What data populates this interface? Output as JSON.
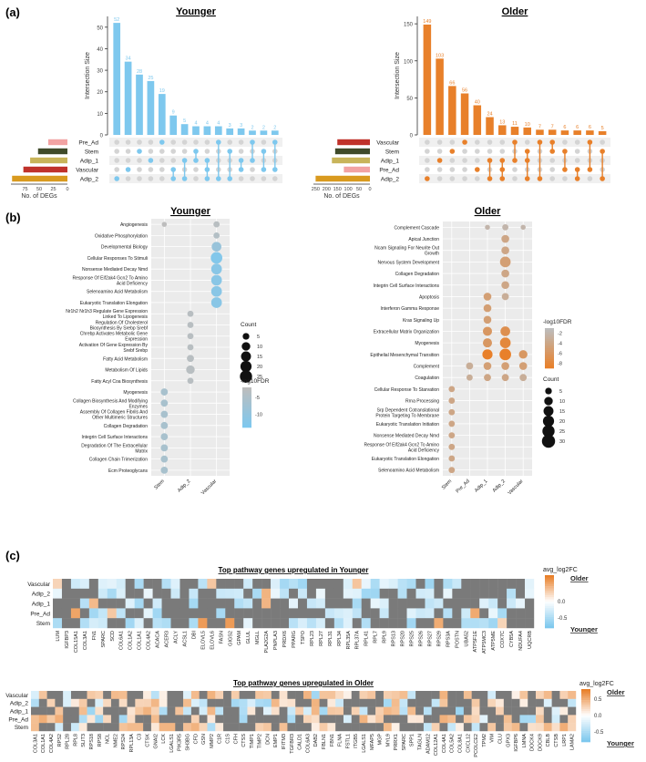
{
  "panel_labels": {
    "a": "(a)",
    "b": "(b)",
    "c": "(c)"
  },
  "colors": {
    "young_bar": "#7EC8EE",
    "old_bar": "#E8802A",
    "set_pre_ad": "#F2A3A3",
    "set_stem": "#3F4A2A",
    "set_adip_1": "#C8B45A",
    "set_vascular": "#C0322B",
    "set_adip_2": "#D99A1F",
    "panel_bg": "#EBEBEB",
    "na_gray": "#7A7A7A"
  },
  "chart_data": [
    {
      "id": "upset-younger",
      "type": "bar",
      "title": "Younger",
      "ylabel": "Intersection Size",
      "ylim": [
        0,
        55
      ],
      "yticks": [
        0,
        10,
        20,
        30,
        40,
        50
      ],
      "values": [
        52,
        34,
        28,
        25,
        19,
        9,
        5,
        4,
        4,
        4,
        3,
        3,
        2,
        2,
        2
      ],
      "set_size_axis_label": "No. of DEGs",
      "set_size_ticks": [
        75,
        50,
        25,
        0
      ],
      "set_size_max": 100,
      "sets": [
        {
          "name": "Pre_Ad",
          "size": 34,
          "color_key": "set_pre_ad"
        },
        {
          "name": "Stem",
          "size": 52,
          "color_key": "set_stem"
        },
        {
          "name": "Adip_1",
          "size": 66,
          "color_key": "set_adip_1"
        },
        {
          "name": "Vascular",
          "size": 78,
          "color_key": "set_vascular"
        },
        {
          "name": "Adip_2",
          "size": 98,
          "color_key": "set_adip_2"
        }
      ],
      "membership": [
        [
          4
        ],
        [
          3
        ],
        [
          1
        ],
        [
          2
        ],
        [
          0
        ],
        [
          3,
          4
        ],
        [
          2,
          4
        ],
        [
          1,
          2
        ],
        [
          2,
          3,
          4
        ],
        [
          0,
          4
        ],
        [
          1,
          4
        ],
        [
          2,
          3
        ],
        [
          0,
          2
        ],
        [
          1,
          3
        ],
        [
          0,
          3
        ]
      ]
    },
    {
      "id": "upset-older",
      "type": "bar",
      "title": "Older",
      "ylabel": "Intersection Size",
      "ylim": [
        0,
        160
      ],
      "yticks": [
        0,
        50,
        100,
        150
      ],
      "values": [
        149,
        103,
        66,
        56,
        40,
        24,
        13,
        11,
        10,
        7,
        7,
        6,
        6,
        6,
        5
      ],
      "set_size_axis_label": "No. of DEGs",
      "set_size_ticks": [
        250,
        200,
        150,
        100,
        50,
        0
      ],
      "set_size_max": 260,
      "sets": [
        {
          "name": "Vascular",
          "size": 150,
          "color_key": "set_vascular"
        },
        {
          "name": "Stem",
          "size": 160,
          "color_key": "set_stem"
        },
        {
          "name": "Adip_1",
          "size": 175,
          "color_key": "set_adip_1"
        },
        {
          "name": "Pre_Ad",
          "size": 120,
          "color_key": "set_pre_ad"
        },
        {
          "name": "Adip_2",
          "size": 250,
          "color_key": "set_adip_2"
        }
      ],
      "membership": [
        [
          4
        ],
        [
          2
        ],
        [
          1
        ],
        [
          0
        ],
        [
          3
        ],
        [
          2,
          4
        ],
        [
          2,
          3,
          4
        ],
        [
          0,
          2
        ],
        [
          1,
          2,
          4
        ],
        [
          0,
          4
        ],
        [
          0,
          1
        ],
        [
          1,
          3
        ],
        [
          3,
          4
        ],
        [
          0,
          3
        ],
        [
          1,
          4
        ]
      ]
    },
    {
      "id": "dot-younger",
      "type": "scatter",
      "title": "Younger",
      "x": [
        "Stem",
        "Adip_2",
        "Vascular"
      ],
      "pathways": [
        "Angiogenesis",
        "Oxidative Phosphorylation",
        "Developmental Biology",
        "Cellular Responses To Stimuli",
        "Nonsense Mediated Decay Nmd",
        "Response Of Eif2ak4 Gcn2 To Amino Acid Deficiency",
        "Selenoamino Acid Metabolism",
        "Eukaryotic Translation Elongation",
        "Nr1h2 Nr1h3 Regulate Gene Expression Linked To Lipogenesis",
        "Regulation Of Cholesterol Biosynthesis By Srebp Srebf",
        "Chrebp Activates Metabolic Gene Expression",
        "Activation Of Gene Expression By Srebf Srebp",
        "Fatty Acid Metabolism",
        "Metabolism Of Lipids",
        "Fatty Acyl Coa Biosynthesis",
        "Myogenesis",
        "Collagen Biosynthesis And Modifying Enzymes",
        "Assembly Of Collagen Fibrils And Other Multimeric Structures",
        "Collagen Degradation",
        "Integrin Cell Surface Interactions",
        "Degradation Of The Extracellular Matrix",
        "Collagen Chain Trimerization",
        "Ecm Proteoglycans"
      ],
      "points": [
        {
          "x": 0,
          "y": 0,
          "count": 2,
          "log10fdr": -2
        },
        {
          "x": 2,
          "y": 0,
          "count": 4,
          "log10fdr": -3
        },
        {
          "x": 2,
          "y": 1,
          "count": 4,
          "log10fdr": -4
        },
        {
          "x": 2,
          "y": 2,
          "count": 14,
          "log10fdr": -9
        },
        {
          "x": 2,
          "y": 3,
          "count": 22,
          "log10fdr": -13
        },
        {
          "x": 2,
          "y": 4,
          "count": 18,
          "log10fdr": -12
        },
        {
          "x": 2,
          "y": 5,
          "count": 18,
          "log10fdr": -12
        },
        {
          "x": 2,
          "y": 6,
          "count": 18,
          "log10fdr": -12
        },
        {
          "x": 2,
          "y": 7,
          "count": 18,
          "log10fdr": -12
        },
        {
          "x": 1,
          "y": 8,
          "count": 4,
          "log10fdr": -3
        },
        {
          "x": 1,
          "y": 9,
          "count": 4,
          "log10fdr": -3
        },
        {
          "x": 1,
          "y": 10,
          "count": 4,
          "log10fdr": -3
        },
        {
          "x": 1,
          "y": 11,
          "count": 4,
          "log10fdr": -3
        },
        {
          "x": 1,
          "y": 12,
          "count": 6,
          "log10fdr": -3
        },
        {
          "x": 1,
          "y": 13,
          "count": 10,
          "log10fdr": -3
        },
        {
          "x": 1,
          "y": 14,
          "count": 4,
          "log10fdr": -3
        },
        {
          "x": 0,
          "y": 15,
          "count": 6,
          "log10fdr": -6
        },
        {
          "x": 0,
          "y": 16,
          "count": 6,
          "log10fdr": -6
        },
        {
          "x": 0,
          "y": 17,
          "count": 6,
          "log10fdr": -6
        },
        {
          "x": 0,
          "y": 18,
          "count": 6,
          "log10fdr": -6
        },
        {
          "x": 0,
          "y": 19,
          "count": 6,
          "log10fdr": -6
        },
        {
          "x": 0,
          "y": 20,
          "count": 6,
          "log10fdr": -6
        },
        {
          "x": 0,
          "y": 21,
          "count": 6,
          "log10fdr": -6
        },
        {
          "x": 0,
          "y": 22,
          "count": 6,
          "log10fdr": -6
        }
      ],
      "legend": {
        "count_title": "Count",
        "count_sizes": [
          5,
          10,
          15,
          20,
          25
        ],
        "color_title": "-log10FDR",
        "color_ticks": [
          -5,
          -10
        ],
        "color_range": [
          -2,
          -14
        ],
        "color_low": "#BDBDBD",
        "color_high": "#7EC8EE"
      }
    },
    {
      "id": "dot-older",
      "type": "scatter",
      "title": "Older",
      "x": [
        "Stem",
        "Pre_Ad",
        "Adip_1",
        "Adip_2",
        "Vascular"
      ],
      "pathways": [
        "Complement Cascade",
        "Apical Junction",
        "Ncam Signaling For Neurite Out Growth",
        "Nervous System Development",
        "Collagen Degradation",
        "Integrin Cell Surface Interactions",
        "Apoptosis",
        "Interferon Gamma Response",
        "Kras Signaling Up",
        "Extracellular Matrix Organization",
        "Myogenesis",
        "Epithelial Mesenchymal Transition",
        "Complement",
        "Coagulation",
        "Cellular Response To Starvation",
        "Rrna Processing",
        "Srp Dependent Cotranslational Protein Targeting To Membrane",
        "Eukaryotic Translation Initiation",
        "Nonsense Mediated Decay Nmd",
        "Response Of Eif2ak4 Gcn2 To Amino Acid Deficiency",
        "Eukaryotic Translation Elongation",
        "Selenoamino Acid Metabolism"
      ],
      "points": [
        {
          "x": 2,
          "y": 0,
          "count": 2,
          "log10fdr": -2
        },
        {
          "x": 3,
          "y": 0,
          "count": 4,
          "log10fdr": -2
        },
        {
          "x": 4,
          "y": 0,
          "count": 2,
          "log10fdr": -2
        },
        {
          "x": 3,
          "y": 1,
          "count": 8,
          "log10fdr": -4
        },
        {
          "x": 3,
          "y": 2,
          "count": 8,
          "log10fdr": -4
        },
        {
          "x": 3,
          "y": 3,
          "count": 18,
          "log10fdr": -5
        },
        {
          "x": 3,
          "y": 4,
          "count": 8,
          "log10fdr": -4
        },
        {
          "x": 3,
          "y": 5,
          "count": 8,
          "log10fdr": -4
        },
        {
          "x": 2,
          "y": 6,
          "count": 8,
          "log10fdr": -5
        },
        {
          "x": 3,
          "y": 6,
          "count": 6,
          "log10fdr": -3
        },
        {
          "x": 2,
          "y": 7,
          "count": 8,
          "log10fdr": -5
        },
        {
          "x": 2,
          "y": 8,
          "count": 8,
          "log10fdr": -5
        },
        {
          "x": 2,
          "y": 9,
          "count": 12,
          "log10fdr": -6
        },
        {
          "x": 3,
          "y": 9,
          "count": 14,
          "log10fdr": -7
        },
        {
          "x": 2,
          "y": 10,
          "count": 12,
          "log10fdr": -6
        },
        {
          "x": 3,
          "y": 10,
          "count": 18,
          "log10fdr": -8
        },
        {
          "x": 2,
          "y": 11,
          "count": 16,
          "log10fdr": -9
        },
        {
          "x": 3,
          "y": 11,
          "count": 22,
          "log10fdr": -9
        },
        {
          "x": 4,
          "y": 11,
          "count": 10,
          "log10fdr": -6
        },
        {
          "x": 1,
          "y": 12,
          "count": 6,
          "log10fdr": -3
        },
        {
          "x": 2,
          "y": 12,
          "count": 8,
          "log10fdr": -5
        },
        {
          "x": 3,
          "y": 12,
          "count": 8,
          "log10fdr": -5
        },
        {
          "x": 4,
          "y": 12,
          "count": 8,
          "log10fdr": -5
        },
        {
          "x": 1,
          "y": 13,
          "count": 4,
          "log10fdr": -3
        },
        {
          "x": 2,
          "y": 13,
          "count": 6,
          "log10fdr": -4
        },
        {
          "x": 3,
          "y": 13,
          "count": 6,
          "log10fdr": -4
        },
        {
          "x": 4,
          "y": 13,
          "count": 6,
          "log10fdr": -3
        },
        {
          "x": 0,
          "y": 14,
          "count": 4,
          "log10fdr": -4
        },
        {
          "x": 0,
          "y": 15,
          "count": 4,
          "log10fdr": -4
        },
        {
          "x": 0,
          "y": 16,
          "count": 4,
          "log10fdr": -4
        },
        {
          "x": 0,
          "y": 17,
          "count": 4,
          "log10fdr": -4
        },
        {
          "x": 0,
          "y": 18,
          "count": 4,
          "log10fdr": -4
        },
        {
          "x": 0,
          "y": 19,
          "count": 4,
          "log10fdr": -4
        },
        {
          "x": 0,
          "y": 20,
          "count": 4,
          "log10fdr": -4
        },
        {
          "x": 0,
          "y": 21,
          "count": 4,
          "log10fdr": -4
        }
      ],
      "legend": {
        "count_title": "Count",
        "count_sizes": [
          5,
          10,
          15,
          20,
          25,
          30
        ],
        "color_title": "-log10FDR",
        "color_ticks": [
          -2,
          -4,
          -6,
          -8
        ],
        "color_range": [
          -1,
          -9
        ],
        "color_low": "#BDBDBD",
        "color_high": "#E8802A"
      }
    },
    {
      "id": "heat-younger",
      "type": "heatmap",
      "title": "Top pathway genes upregulated in Younger",
      "rows": [
        "Vascular",
        "Adip_2",
        "Adip_1",
        "Pre_Ad",
        "Stem"
      ],
      "columns": [
        "LUM",
        "IGFBP3",
        "COL15A1",
        "COL3A1",
        "FN1",
        "SPARC",
        "SCD",
        "COL6A1",
        "COL1A2",
        "COL1A1",
        "COL4A2",
        "ACACA",
        "ACER3",
        "ACLY",
        "ACSL1",
        "DBI",
        "ELOVL5",
        "ELOVL6",
        "FASN",
        "GIGS2",
        "GPAM",
        "GLUL",
        "MGLL",
        "PLA2G2A",
        "PNPLA3",
        "PRDX6",
        "PPARG",
        "TSPO",
        "RPL23",
        "RPL27",
        "RPL31",
        "RPL34",
        "RPL35A",
        "RPL37A",
        "RPL41",
        "RPL7",
        "RPL9",
        "RPS13",
        "RPS20",
        "RPS25",
        "RPS26",
        "RPS27",
        "RPS29",
        "RPS3A",
        "POSTN",
        "UBA52",
        "ATP5F1E",
        "ATP5MC3",
        "ATP5ME",
        "COX7C",
        "CYB5A",
        "NDUFA4",
        "UQCRB"
      ],
      "legend_title": "avg_log2FC",
      "legend_ticks": [
        0.0,
        -0.5
      ],
      "legend_tick_labels": [
        "0.0",
        "-0.5"
      ],
      "legend_top": "Older",
      "legend_bottom": "Younger",
      "value_range": [
        -0.8,
        0.8
      ]
    },
    {
      "id": "heat-older",
      "type": "heatmap",
      "title": "Top pathway genes upregulated in Older",
      "rows": [
        "Vascular",
        "Adip_2",
        "Adip_1",
        "Pre_Ad",
        "Stem"
      ],
      "columns": [
        "COL3A1",
        "COL1A1",
        "COL4A2",
        "RPS2",
        "RPL28",
        "RPL8",
        "SLIT3",
        "RPS18",
        "RPS8",
        "NCL",
        "NME2",
        "RPS24",
        "RPL13A",
        "C3",
        "CTSK",
        "GNAI2",
        "LCK",
        "LGALS1",
        "PIK3R5",
        "SH3BG",
        "CFD",
        "GSN",
        "MMP2",
        "C1R",
        "C1S",
        "CFH",
        "CTSS",
        "TIMP1",
        "TIMP2",
        "DCN",
        "EMP1",
        "IFITM3",
        "TGFBR3",
        "CALD1",
        "COL6A3",
        "DAB2",
        "FBLN1",
        "FBN1",
        "FLNA",
        "FSTL1",
        "ITGB5",
        "LGALS1",
        "MFAP5",
        "MGP",
        "MYL9",
        "PRRX1",
        "SPARC",
        "SPP1",
        "TAGLN",
        "ADAM12",
        "COL12A1",
        "COL4A1",
        "COL5A2",
        "COL8A1",
        "CXCL12",
        "PCOLCE2",
        "TPM2",
        "VIM",
        "CLU",
        "GPX3",
        "IGFBP6",
        "LMNA",
        "DOCK4",
        "DOCK9",
        "CBLB",
        "CTSB",
        "LRP1",
        "LAMA2"
      ],
      "legend_title": "avg_log2FC",
      "legend_ticks": [
        0.5,
        0.0,
        -0.5
      ],
      "legend_tick_labels": [
        "0.5",
        "0.0",
        "-0.5"
      ],
      "legend_top": "Older",
      "legend_bottom": "Younger",
      "value_range": [
        -0.8,
        0.8
      ]
    }
  ]
}
